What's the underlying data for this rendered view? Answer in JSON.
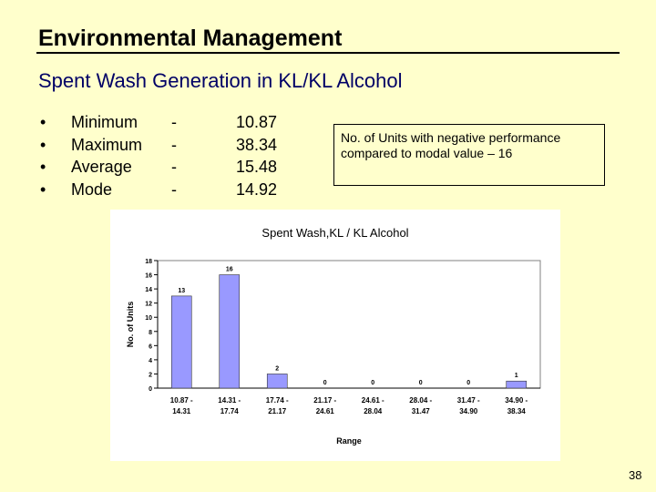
{
  "slide": {
    "title": "Environmental Management",
    "subtitle": "Spent Wash Generation in KL/KL Alcohol",
    "page_number": "38",
    "stats": [
      {
        "bullet": "•",
        "label": "Minimum",
        "dash": "-",
        "value": "10.87"
      },
      {
        "bullet": "•",
        "label": "Maximum",
        "dash": "-",
        "value": "38.34"
      },
      {
        "bullet": "•",
        "label": "Average",
        "dash": "-",
        "value": "15.48"
      },
      {
        "bullet": "•",
        "label": "Mode",
        "dash": "-",
        "value": "14.92"
      }
    ],
    "note": "No. of Units with negative performance compared to modal value – 16"
  },
  "chart_data": {
    "type": "bar",
    "title": "Spent Wash,KL / KL Alcohol",
    "xlabel": "Range",
    "ylabel": "No. of Units",
    "ylim": [
      0,
      18
    ],
    "yticks": [
      0,
      2,
      4,
      6,
      8,
      10,
      12,
      14,
      16,
      18
    ],
    "grid": false,
    "legend": "none",
    "bar_color": "#9999ff",
    "categories": [
      [
        "10.87 -",
        "14.31"
      ],
      [
        "14.31 -",
        "17.74"
      ],
      [
        "17.74 -",
        "21.17"
      ],
      [
        "21.17 -",
        "24.61"
      ],
      [
        "24.61 -",
        "28.04"
      ],
      [
        "28.04 -",
        "31.47"
      ],
      [
        "31.47 -",
        "34.90"
      ],
      [
        "34.90 -",
        "38.34"
      ]
    ],
    "values": [
      13,
      16,
      2,
      0,
      0,
      0,
      0,
      1
    ]
  }
}
